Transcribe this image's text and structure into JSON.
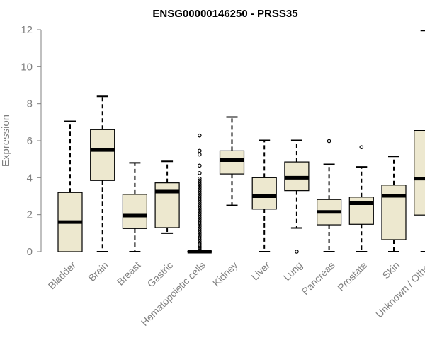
{
  "chart_data": {
    "type": "box",
    "title": "ENSG00000146250 - PRSS35",
    "ylabel": "Expression",
    "xlabel": "",
    "ylim": [
      0,
      12
    ],
    "yticks": [
      0,
      2,
      4,
      6,
      8,
      10,
      12
    ],
    "grid": false,
    "legend": "none",
    "colors": {
      "box_fill": "#ede8cf",
      "box_stroke": "#000000",
      "median": "#000000",
      "axis": "#808080",
      "tick_text": "#808080"
    },
    "categories": [
      "Bladder",
      "Brain",
      "Breast",
      "Gastric",
      "Hematopoietic cells",
      "Kidney",
      "Liver",
      "Lung",
      "Pancreas",
      "Prostate",
      "Skin",
      "Unknown / Other"
    ],
    "boxes": [
      {
        "category": "Bladder",
        "whisker_low": 0,
        "q1": 0,
        "median": 1.6,
        "q3": 3.2,
        "whisker_high": 7.05,
        "outliers": []
      },
      {
        "category": "Brain",
        "whisker_low": 0,
        "q1": 3.85,
        "median": 5.5,
        "q3": 6.6,
        "whisker_high": 8.4,
        "outliers": []
      },
      {
        "category": "Breast",
        "whisker_low": 0,
        "q1": 1.25,
        "median": 1.95,
        "q3": 3.1,
        "whisker_high": 4.8,
        "outliers": []
      },
      {
        "category": "Gastric",
        "whisker_low": 1.0,
        "q1": 1.3,
        "median": 3.25,
        "q3": 3.72,
        "whisker_high": 4.88,
        "outliers": []
      },
      {
        "category": "Hematopoietic cells",
        "whisker_low": 0,
        "q1": 0,
        "median": 0,
        "q3": 0,
        "whisker_high": 0,
        "outliers": [
          0.08,
          0.15,
          0.22,
          0.3,
          0.38,
          0.45,
          0.55,
          0.65,
          0.75,
          0.85,
          0.95,
          1.05,
          1.15,
          1.25,
          1.35,
          1.45,
          1.55,
          1.65,
          1.75,
          1.85,
          1.95,
          2.05,
          2.15,
          2.25,
          2.35,
          2.45,
          2.55,
          2.65,
          2.75,
          2.85,
          2.95,
          3.05,
          3.15,
          3.25,
          3.35,
          3.45,
          3.55,
          3.65,
          3.75,
          3.85,
          3.95,
          4.25,
          4.65,
          5.25,
          5.45,
          6.28
        ]
      },
      {
        "category": "Kidney",
        "whisker_low": 2.5,
        "q1": 4.2,
        "median": 4.95,
        "q3": 5.45,
        "whisker_high": 7.28,
        "outliers": []
      },
      {
        "category": "Liver",
        "whisker_low": 0,
        "q1": 2.3,
        "median": 3.0,
        "q3": 4.0,
        "whisker_high": 6.02,
        "outliers": []
      },
      {
        "category": "Lung",
        "whisker_low": 1.28,
        "q1": 3.3,
        "median": 4.0,
        "q3": 4.85,
        "whisker_high": 6.02,
        "outliers": [
          0
        ]
      },
      {
        "category": "Pancreas",
        "whisker_low": 0,
        "q1": 1.45,
        "median": 2.15,
        "q3": 2.82,
        "whisker_high": 4.72,
        "outliers": [
          5.98
        ]
      },
      {
        "category": "Prostate",
        "whisker_low": 0,
        "q1": 1.48,
        "median": 2.62,
        "q3": 2.95,
        "whisker_high": 4.58,
        "outliers": [
          5.65
        ]
      },
      {
        "category": "Skin",
        "whisker_low": 0,
        "q1": 0.65,
        "median": 3.02,
        "q3": 3.6,
        "whisker_high": 5.15,
        "outliers": []
      },
      {
        "category": "Unknown / Other",
        "whisker_low": 0,
        "q1": 1.98,
        "median": 3.95,
        "q3": 6.55,
        "whisker_high": 11.95,
        "outliers": []
      }
    ]
  }
}
